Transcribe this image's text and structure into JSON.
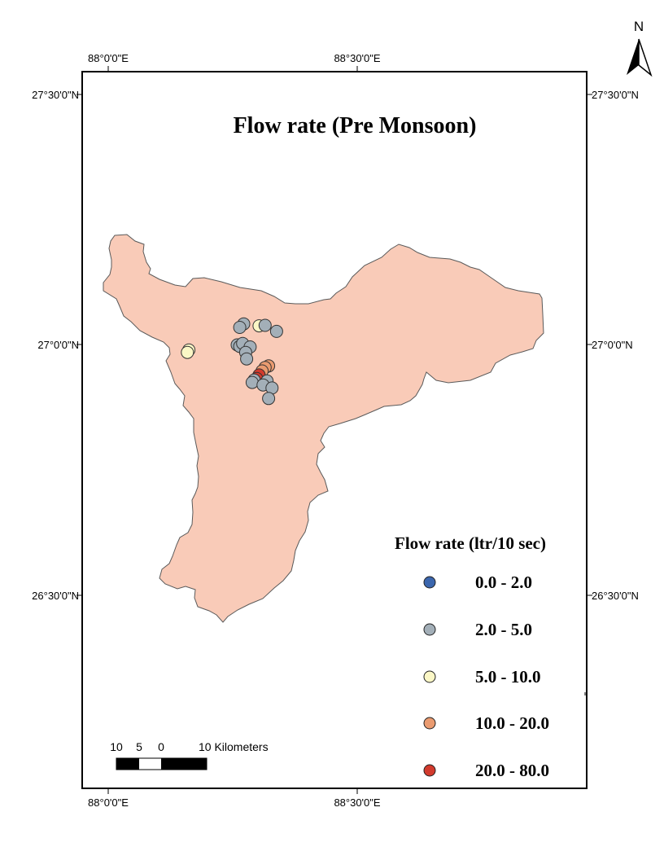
{
  "map": {
    "title": "Flow rate (Pre Monsoon)",
    "north_label": "N",
    "region_fill": "#f9cbb8",
    "region_stroke": "#5a5a5a"
  },
  "graticule": {
    "top_labels": [
      "88°0'0\"E",
      "88°30'0\"E"
    ],
    "bottom_labels": [
      "88°0'0\"E",
      "88°30'0\"E"
    ],
    "left_labels": [
      "27°30'0\"N",
      "27°0'0\"N",
      "26°30'0\"N"
    ],
    "right_labels": [
      "27°30'0\"N",
      "27°0'0\"N",
      "26°30'0\"N"
    ]
  },
  "legend": {
    "title": "Flow rate (ltr/10 sec)",
    "classes": [
      {
        "label": "0.0 - 2.0",
        "color": "#3b66ad"
      },
      {
        "label": "2.0 - 5.0",
        "color": "#a3afb8"
      },
      {
        "label": "5.0 - 10.0",
        "color": "#fbf7c6"
      },
      {
        "label": "10.0 - 20.0",
        "color": "#ea9b70"
      },
      {
        "label": "20.0 - 80.0",
        "color": "#d23a2d"
      }
    ]
  },
  "scale_bar": {
    "labels": [
      "10",
      "5",
      "0",
      "10 Kilometers"
    ]
  },
  "sample_points": [
    {
      "lon": 88.272,
      "lat": 27.042,
      "class": 1
    },
    {
      "lon": 88.264,
      "lat": 27.035,
      "class": 1
    },
    {
      "lon": 88.303,
      "lat": 27.038,
      "class": 2
    },
    {
      "lon": 88.315,
      "lat": 27.039,
      "class": 1
    },
    {
      "lon": 88.338,
      "lat": 27.027,
      "class": 1
    },
    {
      "lon": 88.259,
      "lat": 27.0,
      "class": 1
    },
    {
      "lon": 88.264,
      "lat": 26.997,
      "class": 1
    },
    {
      "lon": 88.27,
      "lat": 27.003,
      "class": 1
    },
    {
      "lon": 88.285,
      "lat": 26.996,
      "class": 1
    },
    {
      "lon": 88.276,
      "lat": 26.985,
      "class": 1
    },
    {
      "lon": 88.278,
      "lat": 26.972,
      "class": 1
    },
    {
      "lon": 88.162,
      "lat": 26.99,
      "class": 2
    },
    {
      "lon": 88.159,
      "lat": 26.985,
      "class": 2
    },
    {
      "lon": 88.322,
      "lat": 26.958,
      "class": 3
    },
    {
      "lon": 88.315,
      "lat": 26.955,
      "class": 3
    },
    {
      "lon": 88.309,
      "lat": 26.948,
      "class": 3
    },
    {
      "lon": 88.303,
      "lat": 26.94,
      "class": 4
    },
    {
      "lon": 88.298,
      "lat": 26.933,
      "class": 4
    },
    {
      "lon": 88.293,
      "lat": 26.93,
      "class": 1
    },
    {
      "lon": 88.289,
      "lat": 26.925,
      "class": 1
    },
    {
      "lon": 88.319,
      "lat": 26.928,
      "class": 1
    },
    {
      "lon": 88.311,
      "lat": 26.92,
      "class": 1
    },
    {
      "lon": 88.329,
      "lat": 26.914,
      "class": 1
    },
    {
      "lon": 88.322,
      "lat": 26.893,
      "class": 1
    }
  ]
}
